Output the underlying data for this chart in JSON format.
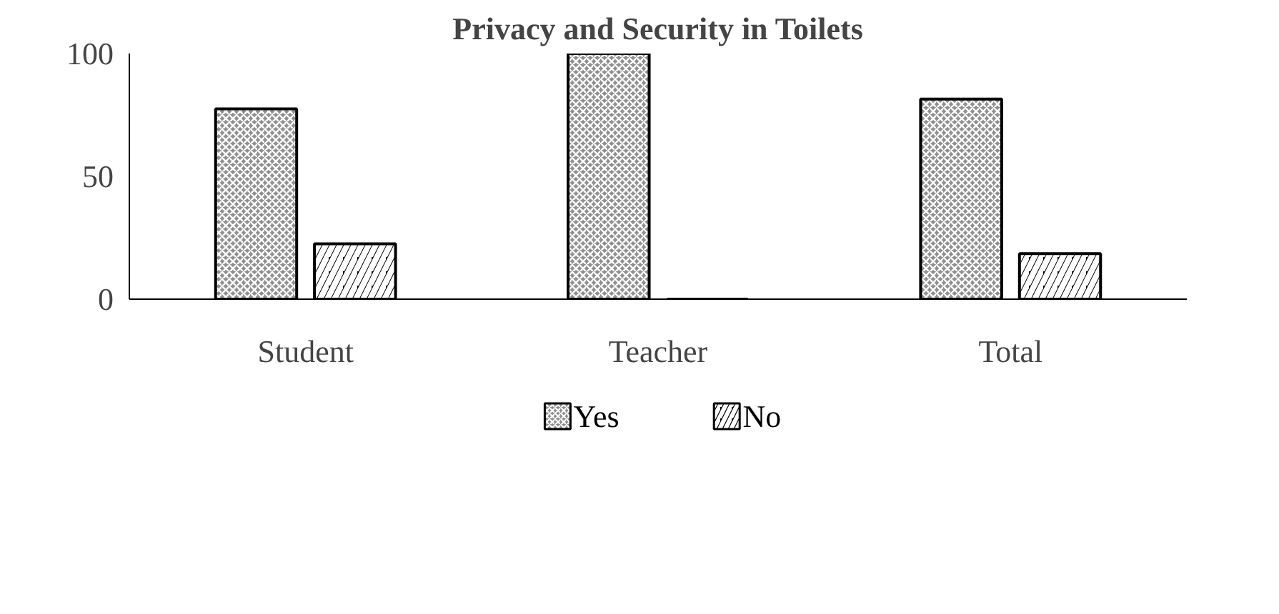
{
  "chart_data": {
    "type": "bar",
    "title": "Privacy and Security in Toilets",
    "categories": [
      "Student",
      "Teacher",
      "Total"
    ],
    "series": [
      {
        "name": "Yes",
        "color": "#909090",
        "values": [
          77.5,
          100,
          81.5
        ]
      },
      {
        "name": "No",
        "color": "#000000",
        "values": [
          22.5,
          0,
          18.5
        ]
      }
    ],
    "ylim": [
      0,
      100
    ],
    "yticks": [
      0,
      50,
      100
    ],
    "grid": false,
    "legend": "bottom"
  }
}
